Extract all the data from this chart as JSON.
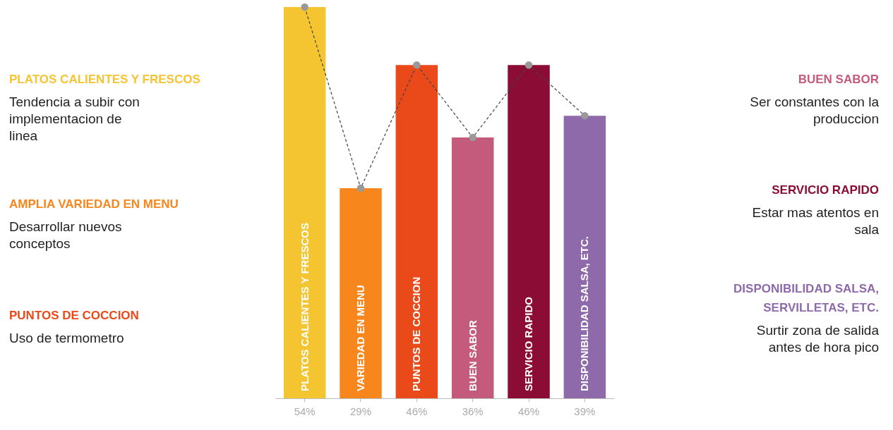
{
  "chart_data": {
    "type": "bar",
    "categories": [
      "PLATOS CALIENTES Y FRESCOS",
      "VARIEDAD EN MENU",
      "PUNTOS DE COCCION",
      "BUEN SABOR",
      "SERVICIO RAPIDO",
      "DISPONIBILIDAD SALSA, ETC."
    ],
    "series": [
      {
        "colors": [
          "#f5c531",
          "#f7861d",
          "#ea4a1a",
          "#c45a7c",
          "#8b0d35",
          "#8f6aab"
        ],
        "values": [
          54,
          29,
          46,
          36,
          46,
          39
        ],
        "value_labels": [
          "54%",
          "29%",
          "46%",
          "36%",
          "46%",
          "39%"
        ]
      },
      {
        "type": "line",
        "color": "#444444",
        "values": [
          54,
          29,
          46,
          36,
          46,
          39
        ],
        "line_style": "dashed",
        "marker": "circle"
      }
    ],
    "tick_labels": false,
    "annotations": [
      "PLATOS CALIENTES Y FRESCOS",
      "Tendencia a subir con implementacion de linea",
      "AMPLIA VARIEDAD EN MENU",
      "Desarrollar nuevos conceptos",
      "PUNTOS DE COCCION",
      "Uso de termometro",
      "BUEN SABOR",
      "Ser constantes con la produccion",
      "SERVICIO RAPIDO",
      "Estar mas atentos en sala",
      "DISPONIBILIDAD SALSA, SERVILLETAS, ETC.",
      "Surtir zona de salida antes de hora pico"
    ]
  }
}
